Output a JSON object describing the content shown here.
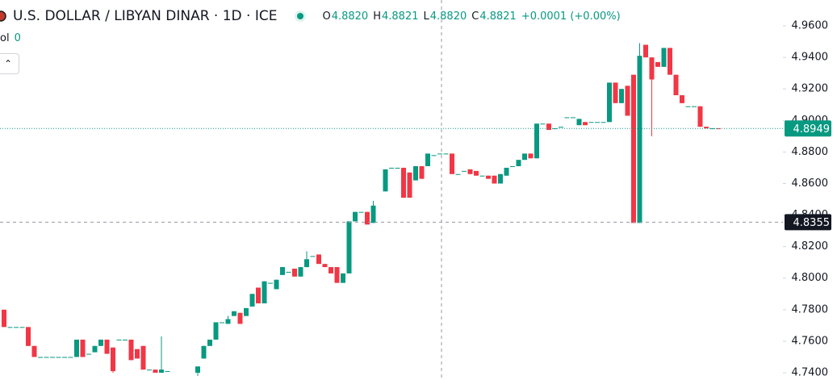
{
  "chart_data": {
    "type": "candlestick",
    "title": "U.S. DOLLAR / LIBYAN DINAR · 1D · ICE",
    "ohlc_legend": [
      {
        "label": "O",
        "value": "4.8820"
      },
      {
        "label": "H",
        "value": "4.8821"
      },
      {
        "label": "L",
        "value": "4.8820"
      },
      {
        "label": "C",
        "value": "4.8821"
      }
    ],
    "change": "+0.0001 (+0.00%)",
    "volume_label": "ol",
    "volume_value": "0",
    "up_color": "#089981",
    "down_color": "#f23645",
    "ylim": [
      4.7354,
      4.9764
    ],
    "yticks": [
      {
        "value": 4.74,
        "label": "4.7400"
      },
      {
        "value": 4.76,
        "label": "4.7600"
      },
      {
        "value": 4.78,
        "label": "4.7800"
      },
      {
        "value": 4.8,
        "label": "4.8000"
      },
      {
        "value": 4.82,
        "label": "4.8200"
      },
      {
        "value": 4.84,
        "label": "4.8400"
      },
      {
        "value": 4.86,
        "label": "4.8600"
      },
      {
        "value": 4.88,
        "label": "4.8800"
      },
      {
        "value": 4.9,
        "label": "4.9000"
      },
      {
        "value": 4.92,
        "label": "4.9200"
      },
      {
        "value": 4.94,
        "label": "4.9400"
      },
      {
        "value": 4.96,
        "label": "4.9600"
      }
    ],
    "last_price": 4.8949,
    "crosshair_price": 4.8355,
    "open": [
      4.78,
      4.769,
      4.769,
      4.769,
      4.769,
      4.757,
      4.75,
      4.75,
      4.75,
      4.75,
      4.75,
      4.75,
      4.75,
      4.761,
      4.752,
      4.753,
      4.757,
      4.761,
      4.756,
      4.761,
      4.761,
      4.761,
      4.755,
      4.757,
      4.742,
      4.742,
      4.74,
      4.741,
      null,
      null,
      null,
      null,
      4.74,
      4.749,
      4.757,
      4.761,
      4.772,
      4.771,
      4.776,
      4.778,
      4.776,
      4.782,
      4.794,
      4.784,
      4.797,
      4.793,
      4.802,
      4.804,
      4.806,
      4.801,
      4.807,
      4.814,
      4.815,
      4.809,
      4.807,
      4.807,
      4.797,
      4.803,
      4.836,
      4.842,
      4.842,
      4.835,
      null,
      4.855,
      4.87,
      4.87,
      4.87,
      4.867,
      4.862,
      4.871,
      4.871,
      4.878,
      4.879,
      4.879,
      4.879,
      4.866,
      4.868,
      4.869,
      4.868,
      4.865,
      4.865,
      4.865,
      4.86,
      4.865,
      4.871,
      4.871,
      4.875,
      4.879,
      4.876,
      4.898,
      4.898,
      4.895,
      4.896,
      4.902,
      4.902,
      4.897,
      4.899,
      4.899,
      4.899,
      4.899,
      4.899,
      4.924,
      4.911,
      4.922,
      4.929,
      4.835,
      4.948,
      4.94,
      4.937,
      4.934,
      4.946,
      4.929,
      4.916,
      4.909,
      4.909,
      4.909,
      4.896,
      4.895,
      4.895
    ],
    "high": [
      4.78,
      4.769,
      4.769,
      4.769,
      4.769,
      4.757,
      4.75,
      4.75,
      4.75,
      4.75,
      4.75,
      4.75,
      4.761,
      4.761,
      4.752,
      4.757,
      4.761,
      4.761,
      4.756,
      4.761,
      4.761,
      4.761,
      4.755,
      4.757,
      4.742,
      4.742,
      4.763,
      4.741,
      null,
      null,
      null,
      null,
      4.744,
      4.757,
      4.761,
      4.772,
      4.772,
      4.776,
      4.779,
      4.778,
      4.781,
      4.79,
      4.794,
      4.798,
      4.797,
      4.799,
      4.807,
      4.804,
      4.806,
      4.807,
      4.817,
      4.814,
      4.815,
      4.809,
      4.807,
      4.807,
      4.803,
      4.836,
      4.842,
      4.842,
      4.842,
      4.849,
      null,
      4.869,
      4.87,
      4.87,
      4.87,
      4.867,
      4.871,
      4.871,
      4.879,
      4.878,
      4.879,
      4.879,
      4.879,
      4.866,
      4.868,
      4.869,
      4.868,
      4.865,
      4.865,
      4.865,
      4.866,
      4.87,
      4.871,
      4.875,
      4.879,
      4.879,
      4.898,
      4.898,
      4.898,
      4.895,
      4.896,
      4.902,
      4.902,
      4.901,
      4.899,
      4.899,
      4.899,
      4.899,
      4.924,
      4.924,
      4.92,
      4.922,
      4.929,
      4.949,
      4.948,
      4.94,
      4.937,
      4.946,
      4.946,
      4.929,
      4.916,
      4.909,
      4.909,
      4.909,
      4.896,
      4.895,
      4.895
    ],
    "low": [
      4.769,
      4.769,
      4.769,
      4.769,
      4.757,
      4.75,
      4.75,
      4.75,
      4.75,
      4.75,
      4.75,
      4.75,
      4.75,
      4.75,
      4.752,
      4.753,
      4.757,
      4.752,
      4.74,
      4.761,
      4.761,
      4.748,
      4.749,
      4.742,
      4.742,
      4.74,
      4.74,
      4.741,
      null,
      null,
      null,
      null,
      4.738,
      4.749,
      4.757,
      4.761,
      4.772,
      4.771,
      4.776,
      4.771,
      4.776,
      4.782,
      4.784,
      4.784,
      4.797,
      4.793,
      4.802,
      4.804,
      4.801,
      4.801,
      4.807,
      4.814,
      4.809,
      4.807,
      4.803,
      4.797,
      4.797,
      4.803,
      4.836,
      4.842,
      4.834,
      4.835,
      null,
      4.855,
      4.87,
      4.87,
      4.851,
      4.851,
      4.862,
      4.863,
      4.871,
      4.878,
      4.879,
      4.879,
      4.866,
      4.866,
      4.868,
      4.866,
      4.865,
      4.865,
      4.863,
      4.86,
      4.86,
      4.865,
      4.871,
      4.871,
      4.875,
      4.876,
      4.876,
      4.898,
      4.894,
      4.895,
      4.896,
      4.902,
      4.902,
      4.897,
      4.897,
      4.899,
      4.899,
      4.899,
      4.899,
      4.911,
      4.911,
      4.903,
      4.835,
      4.835,
      4.94,
      4.89,
      4.934,
      4.934,
      4.929,
      4.916,
      4.911,
      4.909,
      4.909,
      4.896,
      4.895,
      4.895,
      4.8949
    ],
    "close": [
      4.769,
      4.769,
      4.769,
      4.769,
      4.757,
      4.75,
      4.75,
      4.75,
      4.75,
      4.75,
      4.75,
      4.75,
      4.761,
      4.75,
      4.752,
      4.757,
      4.761,
      4.752,
      4.741,
      4.761,
      4.761,
      4.748,
      4.749,
      4.742,
      4.742,
      4.74,
      4.742,
      4.741,
      null,
      null,
      null,
      null,
      4.744,
      4.757,
      4.761,
      4.772,
      4.772,
      4.774,
      4.779,
      4.771,
      4.781,
      4.79,
      4.784,
      4.798,
      4.797,
      4.799,
      4.807,
      4.804,
      4.801,
      4.807,
      4.812,
      4.814,
      4.809,
      4.807,
      4.803,
      4.797,
      4.803,
      4.836,
      4.842,
      4.842,
      4.834,
      4.846,
      null,
      4.869,
      4.87,
      4.87,
      4.851,
      4.851,
      4.871,
      4.863,
      4.879,
      4.878,
      4.879,
      4.879,
      4.866,
      4.866,
      4.868,
      4.866,
      4.865,
      4.865,
      4.863,
      4.86,
      4.866,
      4.87,
      4.871,
      4.875,
      4.879,
      4.876,
      4.898,
      4.898,
      4.894,
      4.895,
      4.896,
      4.902,
      4.902,
      4.901,
      4.897,
      4.899,
      4.899,
      4.899,
      4.924,
      4.911,
      4.92,
      4.903,
      4.835,
      4.941,
      4.94,
      4.926,
      4.934,
      4.946,
      4.929,
      4.916,
      4.911,
      4.909,
      4.909,
      4.896,
      4.895,
      4.895,
      4.8949
    ]
  }
}
